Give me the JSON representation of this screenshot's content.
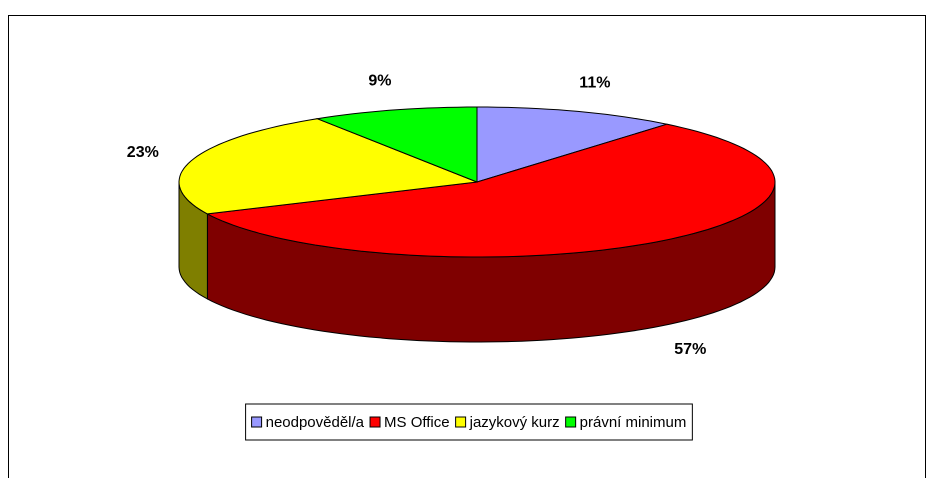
{
  "chart_data": {
    "type": "pie3d",
    "categories": [
      "neodpověděl/a",
      "MS Office",
      "jazykový kurz",
      "právní minimum"
    ],
    "values": [
      11,
      57,
      23,
      9
    ],
    "value_labels": [
      "11%",
      "57%",
      "23%",
      "9%"
    ],
    "colors": [
      "#9999ff",
      "#ff0000",
      "#ffff00",
      "#00ff00"
    ],
    "legend": "bottom"
  }
}
